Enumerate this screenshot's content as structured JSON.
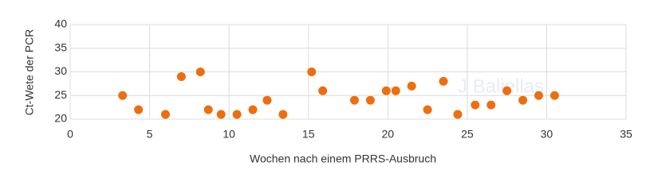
{
  "chart_data": {
    "type": "scatter",
    "watermark": "J Baliellas",
    "x_label": "Wochen nach einem PRRS-Ausbruch",
    "y_label": "Ct-Wete der PCR",
    "x": [
      3.3,
      4.3,
      6.0,
      7.0,
      8.2,
      8.7,
      9.5,
      10.5,
      11.5,
      12.4,
      13.4,
      15.2,
      15.9,
      17.9,
      18.9,
      19.9,
      20.5,
      21.5,
      22.5,
      23.5,
      24.4,
      25.5,
      26.5,
      27.5,
      28.5,
      29.5,
      30.5
    ],
    "values": [
      25,
      22,
      21,
      29,
      30,
      22,
      21,
      21,
      22,
      24,
      21,
      30,
      26,
      24,
      24,
      26,
      26,
      27,
      22,
      28,
      21,
      23,
      23,
      26,
      24,
      25,
      25
    ],
    "color": "#ee6e0f",
    "xlim": [
      0,
      35
    ],
    "xticks": [
      0,
      5,
      10,
      15,
      20,
      25,
      30,
      35
    ],
    "ylim": [
      20,
      40
    ],
    "yticks": [
      20,
      25,
      30,
      35,
      40
    ],
    "grid": true
  }
}
